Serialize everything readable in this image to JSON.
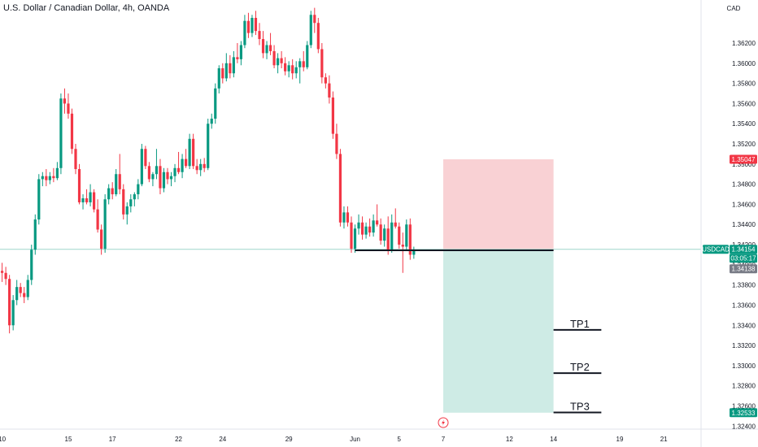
{
  "header": {
    "title": "U.S. Dollar / Canadian Dollar, 4h, OANDA"
  },
  "colors": {
    "up": "#089981",
    "down": "#f23645",
    "stop_zone": "#f8c9cd",
    "target_zone": "#c9e9e2",
    "price_line": "#9fd6cb",
    "axis_text": "#131722"
  },
  "chart_data": {
    "type": "candlestick",
    "symbol": "USDCAD",
    "currency": "CAD",
    "ylim": [
      1.3237,
      1.3645
    ],
    "y_ticks": [
      "1.36200",
      "1.36000",
      "1.35800",
      "1.35600",
      "1.35400",
      "1.35200",
      "1.35000",
      "1.34800",
      "1.34600",
      "1.34400",
      "1.34200",
      "1.34000",
      "1.33800",
      "1.33600",
      "1.33400",
      "1.33200",
      "1.33000",
      "1.32800",
      "1.32600",
      "1.32400"
    ],
    "x_ticks": [
      {
        "label": "10",
        "bar": 0
      },
      {
        "label": "15",
        "bar": 18
      },
      {
        "label": "17",
        "bar": 30
      },
      {
        "label": "22",
        "bar": 48
      },
      {
        "label": "24",
        "bar": 60
      },
      {
        "label": "29",
        "bar": 78
      },
      {
        "label": "Jun",
        "bar": 96
      },
      {
        "label": "5",
        "bar": 108
      },
      {
        "label": "7",
        "bar": 120
      },
      {
        "label": "12",
        "bar": 138
      },
      {
        "label": "14",
        "bar": 150
      },
      {
        "label": "19",
        "bar": 168
      },
      {
        "label": "21",
        "bar": 180
      }
    ],
    "price_labels": [
      {
        "text": "1.35047",
        "value": 1.35047,
        "style": "stop"
      },
      {
        "text": "USDCAD",
        "value": 1.34154,
        "style": "symbol"
      },
      {
        "text": "1.34154",
        "value": 1.34154,
        "style": "current"
      },
      {
        "text": "03:05:17",
        "value": 1.34154,
        "style": "countdown"
      },
      {
        "text": "1.34138",
        "value": 1.34138,
        "style": "entry"
      },
      {
        "text": "1.32533",
        "value": 1.32533,
        "style": "target"
      }
    ],
    "candles": [
      [
        1.3394,
        1.3402,
        1.3383,
        1.3392
      ],
      [
        1.3392,
        1.3398,
        1.338,
        1.3386
      ],
      [
        1.3386,
        1.339,
        1.3332,
        1.334
      ],
      [
        1.334,
        1.337,
        1.3335,
        1.3365
      ],
      [
        1.3365,
        1.3385,
        1.336,
        1.3378
      ],
      [
        1.3378,
        1.3382,
        1.3368,
        1.3372
      ],
      [
        1.3372,
        1.3378,
        1.3362,
        1.3368
      ],
      [
        1.3368,
        1.339,
        1.3365,
        1.3385
      ],
      [
        1.3385,
        1.342,
        1.338,
        1.3415
      ],
      [
        1.3415,
        1.345,
        1.341,
        1.3445
      ],
      [
        1.3445,
        1.349,
        1.344,
        1.3485
      ],
      [
        1.3485,
        1.3492,
        1.3478,
        1.3488
      ],
      [
        1.3488,
        1.3495,
        1.3478,
        1.3484
      ],
      [
        1.3484,
        1.3492,
        1.348,
        1.3488
      ],
      [
        1.3488,
        1.3496,
        1.3482,
        1.3486
      ],
      [
        1.3486,
        1.3502,
        1.3484,
        1.3496
      ],
      [
        1.3496,
        1.357,
        1.349,
        1.3565
      ],
      [
        1.3565,
        1.3575,
        1.355,
        1.356
      ],
      [
        1.356,
        1.357,
        1.3545,
        1.355
      ],
      [
        1.355,
        1.3555,
        1.351,
        1.3515
      ],
      [
        1.3515,
        1.352,
        1.349,
        1.3495
      ],
      [
        1.3495,
        1.35,
        1.346,
        1.3462
      ],
      [
        1.3462,
        1.347,
        1.3455,
        1.3466
      ],
      [
        1.3466,
        1.3475,
        1.346,
        1.3462
      ],
      [
        1.3462,
        1.348,
        1.3458,
        1.3472
      ],
      [
        1.3472,
        1.3475,
        1.3452,
        1.3455
      ],
      [
        1.3455,
        1.3465,
        1.3432,
        1.3435
      ],
      [
        1.3435,
        1.344,
        1.341,
        1.3416
      ],
      [
        1.3416,
        1.347,
        1.3412,
        1.3465
      ],
      [
        1.3465,
        1.348,
        1.346,
        1.3476
      ],
      [
        1.3476,
        1.3482,
        1.3465,
        1.347
      ],
      [
        1.347,
        1.3495,
        1.3468,
        1.349
      ],
      [
        1.349,
        1.351,
        1.347,
        1.3475
      ],
      [
        1.3475,
        1.348,
        1.3445,
        1.345
      ],
      [
        1.345,
        1.3462,
        1.344,
        1.3458
      ],
      [
        1.3458,
        1.347,
        1.3452,
        1.3465
      ],
      [
        1.3465,
        1.3472,
        1.3458,
        1.347
      ],
      [
        1.347,
        1.3485,
        1.3465,
        1.348
      ],
      [
        1.348,
        1.352,
        1.3478,
        1.3515
      ],
      [
        1.3515,
        1.3518,
        1.3495,
        1.3498
      ],
      [
        1.3498,
        1.3502,
        1.3482,
        1.3485
      ],
      [
        1.3485,
        1.3492,
        1.3478,
        1.349
      ],
      [
        1.349,
        1.3515,
        1.3485,
        1.3498
      ],
      [
        1.3498,
        1.3505,
        1.347,
        1.3476
      ],
      [
        1.3476,
        1.3496,
        1.3472,
        1.3492
      ],
      [
        1.3492,
        1.3496,
        1.348,
        1.3485
      ],
      [
        1.3485,
        1.3492,
        1.3478,
        1.3488
      ],
      [
        1.3488,
        1.35,
        1.3482,
        1.3496
      ],
      [
        1.3496,
        1.3512,
        1.349,
        1.3492
      ],
      [
        1.3492,
        1.351,
        1.3486,
        1.3505
      ],
      [
        1.3505,
        1.3515,
        1.3496,
        1.3498
      ],
      [
        1.3498,
        1.353,
        1.3495,
        1.3525
      ],
      [
        1.3525,
        1.353,
        1.3495,
        1.3498
      ],
      [
        1.3498,
        1.3505,
        1.349,
        1.3494
      ],
      [
        1.3494,
        1.3505,
        1.3488,
        1.35
      ],
      [
        1.35,
        1.3506,
        1.3492,
        1.3496
      ],
      [
        1.3496,
        1.3545,
        1.3494,
        1.354
      ],
      [
        1.354,
        1.355,
        1.3535,
        1.3545
      ],
      [
        1.3545,
        1.358,
        1.354,
        1.3575
      ],
      [
        1.3575,
        1.3598,
        1.357,
        1.3595
      ],
      [
        1.3595,
        1.36,
        1.358,
        1.3585
      ],
      [
        1.3585,
        1.361,
        1.3582,
        1.36
      ],
      [
        1.36,
        1.3608,
        1.3585,
        1.359
      ],
      [
        1.359,
        1.3612,
        1.3586,
        1.3606
      ],
      [
        1.3606,
        1.362,
        1.36,
        1.3604
      ],
      [
        1.3604,
        1.3622,
        1.3598,
        1.3618
      ],
      [
        1.3618,
        1.3648,
        1.3615,
        1.3642
      ],
      [
        1.3642,
        1.365,
        1.3625,
        1.363
      ],
      [
        1.363,
        1.3648,
        1.3626,
        1.3645
      ],
      [
        1.3645,
        1.3652,
        1.3628,
        1.3632
      ],
      [
        1.3632,
        1.364,
        1.3618,
        1.3624
      ],
      [
        1.3624,
        1.3632,
        1.3605,
        1.361
      ],
      [
        1.361,
        1.3622,
        1.3604,
        1.3618
      ],
      [
        1.3618,
        1.363,
        1.3608,
        1.3612
      ],
      [
        1.3612,
        1.3618,
        1.3595,
        1.3598
      ],
      [
        1.3598,
        1.361,
        1.359,
        1.3605
      ],
      [
        1.3605,
        1.3612,
        1.3595,
        1.36
      ],
      [
        1.36,
        1.3606,
        1.3588,
        1.3592
      ],
      [
        1.3592,
        1.3602,
        1.3586,
        1.3598
      ],
      [
        1.3598,
        1.3604,
        1.3584,
        1.359
      ],
      [
        1.359,
        1.3602,
        1.3585,
        1.3596
      ],
      [
        1.3596,
        1.3605,
        1.358,
        1.3602
      ],
      [
        1.3602,
        1.3612,
        1.3592,
        1.3596
      ],
      [
        1.3596,
        1.3622,
        1.3594,
        1.3618
      ],
      [
        1.3618,
        1.3652,
        1.3615,
        1.3648
      ],
      [
        1.3648,
        1.3655,
        1.363,
        1.364
      ],
      [
        1.364,
        1.3645,
        1.361,
        1.3614
      ],
      [
        1.3614,
        1.362,
        1.358,
        1.3586
      ],
      [
        1.3586,
        1.359,
        1.3575,
        1.358
      ],
      [
        1.358,
        1.3588,
        1.356,
        1.3566
      ],
      [
        1.3566,
        1.3572,
        1.3525,
        1.353
      ],
      [
        1.353,
        1.354,
        1.3505,
        1.351
      ],
      [
        1.351,
        1.3515,
        1.3438,
        1.3442
      ],
      [
        1.3442,
        1.3458,
        1.3436,
        1.3452
      ],
      [
        1.3452,
        1.3458,
        1.3438,
        1.3442
      ],
      [
        1.3442,
        1.3448,
        1.3412,
        1.3416
      ],
      [
        1.3416,
        1.344,
        1.3412,
        1.3436
      ],
      [
        1.3436,
        1.345,
        1.343,
        1.3442
      ],
      [
        1.3442,
        1.3448,
        1.3425,
        1.343
      ],
      [
        1.343,
        1.3442,
        1.3426,
        1.3438
      ],
      [
        1.3438,
        1.3446,
        1.3428,
        1.3432
      ],
      [
        1.3432,
        1.345,
        1.3428,
        1.3444
      ],
      [
        1.3444,
        1.346,
        1.3438,
        1.344
      ],
      [
        1.344,
        1.3446,
        1.342,
        1.3424
      ],
      [
        1.3424,
        1.344,
        1.3418,
        1.3436
      ],
      [
        1.3436,
        1.3448,
        1.341,
        1.3414
      ],
      [
        1.3414,
        1.345,
        1.3412,
        1.3442
      ],
      [
        1.3442,
        1.3456,
        1.3436,
        1.3438
      ],
      [
        1.3438,
        1.3442,
        1.3416,
        1.342
      ],
      [
        1.342,
        1.3432,
        1.3392,
        1.3418
      ],
      [
        1.3418,
        1.3445,
        1.3414,
        1.344
      ],
      [
        1.344,
        1.3446,
        1.3405,
        1.341
      ],
      [
        1.341,
        1.3418,
        1.3406,
        1.3415
      ]
    ],
    "position": {
      "entry": 1.34138,
      "stop": 1.35047,
      "target": 1.32533,
      "start_bar": 120,
      "end_bar": 150
    },
    "drawn_levels": [
      {
        "label": "",
        "value": 1.34144,
        "from_bar": 96,
        "to_bar": 150
      },
      {
        "label": "TP1",
        "value": 1.33355,
        "from_bar": 150,
        "to_bar": 163
      },
      {
        "label": "TP2",
        "value": 1.32925,
        "from_bar": 150,
        "to_bar": 163
      },
      {
        "label": "TP3",
        "value": 1.32535,
        "from_bar": 150,
        "to_bar": 163
      }
    ],
    "event_marker": {
      "icon": "lightning-icon",
      "bar": 120
    }
  }
}
